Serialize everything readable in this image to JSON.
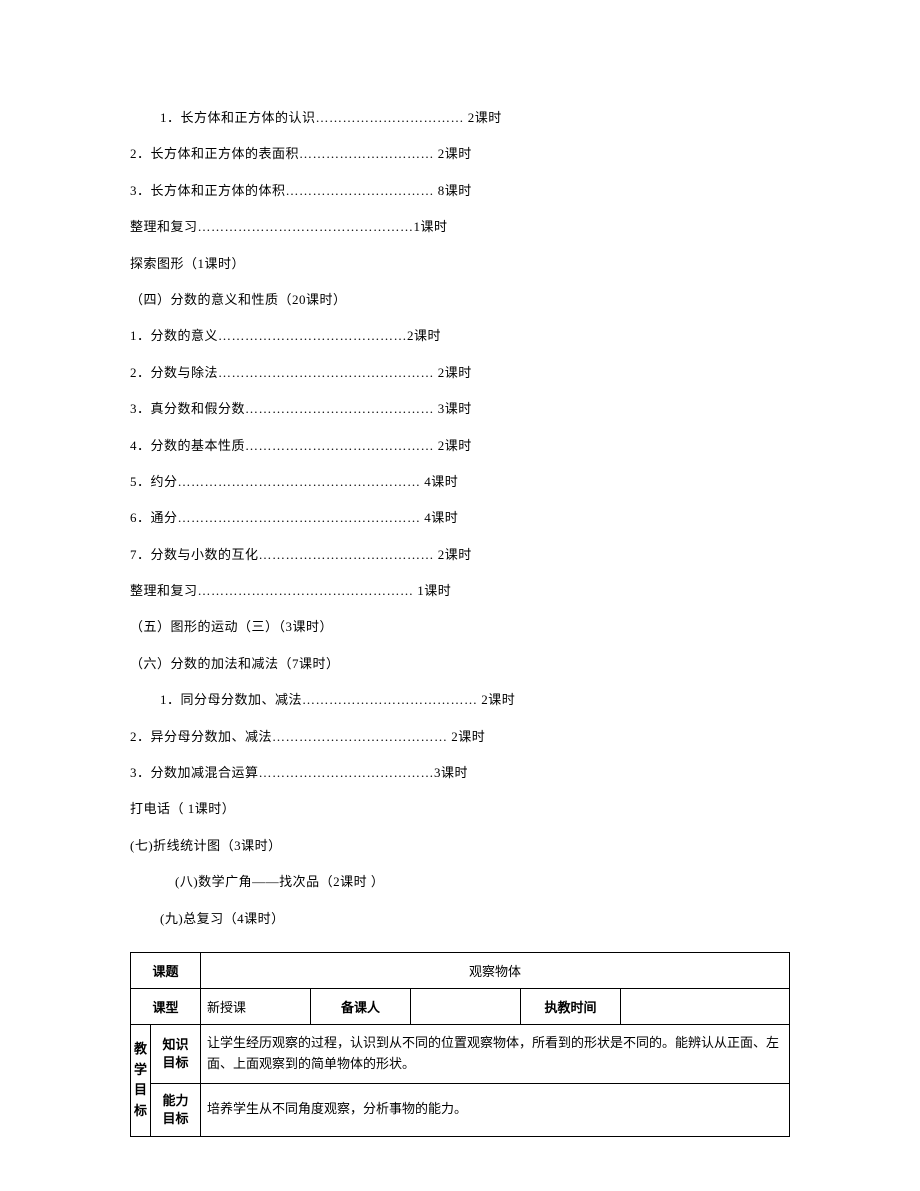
{
  "lines": [
    {
      "text": "1．长方体和正方体的认识…………………………… 2课时",
      "indent": 1
    },
    {
      "text": "2．长方体和正方体的表面积………………………… 2课时",
      "indent": 0
    },
    {
      "text": "3．长方体和正方体的体积…………………………… 8课时",
      "indent": 0
    },
    {
      "text": "整理和复习…………………………………………1课时",
      "indent": 0
    },
    {
      "text": "探索图形（1课时）",
      "indent": 0
    },
    {
      "text": "（四）分数的意义和性质（20课时）",
      "indent": 0
    },
    {
      "text": "1．分数的意义……………………………………2课时",
      "indent": 0
    },
    {
      "text": "2．分数与除法………………………………………… 2课时",
      "indent": 0
    },
    {
      "text": "3．真分数和假分数…………………………………… 3课时",
      "indent": 0
    },
    {
      "text": "4．分数的基本性质…………………………………… 2课时",
      "indent": 0
    },
    {
      "text": "5．约分……………………………………………… 4课时",
      "indent": 0
    },
    {
      "text": "6．通分……………………………………………… 4课时",
      "indent": 0
    },
    {
      "text": " 7．分数与小数的互化………………………………… 2课时",
      "indent": 0
    },
    {
      "text": "整理和复习…………………………………………  1课时",
      "indent": 0
    },
    {
      "text": "（五）图形的运动（三）（3课时）",
      "indent": 0
    },
    {
      "text": "（六）分数的加法和减法（7课时）",
      "indent": 0
    },
    {
      "text": "1．同分母分数加、减法………………………………… 2课时",
      "indent": 1
    },
    {
      "text": "2．异分母分数加、减法………………………………… 2课时",
      "indent": 0
    },
    {
      "text": "3．分数加减混合运算…………………………………3课时",
      "indent": 0
    },
    {
      "text": "打电话（ 1课时）",
      "indent": 0
    },
    {
      "text": " (七)折线统计图（3课时）",
      "indent": 0
    },
    {
      "text": " (八)数学广角——找次品（2课时 ）",
      "indent": 2
    },
    {
      "text": " (九)总复习（4课时）",
      "indent": 1
    }
  ],
  "table": {
    "row1": {
      "label": "课题",
      "value": "观察物体"
    },
    "row2": {
      "label1": "课型",
      "value1": "新授课",
      "label2": "备课人",
      "value2": "",
      "label3": "执教时间",
      "value3": ""
    },
    "goals_label": "教学目标",
    "row3": {
      "sublabel": "知识\n目标",
      "content": "让学生经历观察的过程，认识到从不同的位置观察物体，所看到的形状是不同的。能辨认从正面、左面、上面观察到的简单物体的形状。"
    },
    "row4": {
      "sublabel": "能力\n目标",
      "content": "培养学生从不同角度观察，分析事物的能力。"
    }
  }
}
